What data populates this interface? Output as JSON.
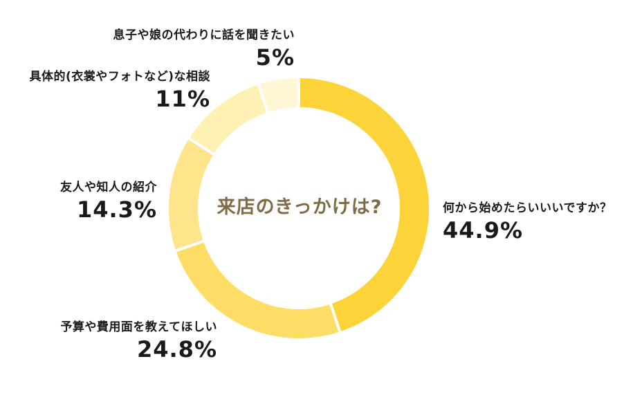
{
  "chart_data": {
    "type": "pie",
    "variant": "donut",
    "title": "来店のきっかけは?",
    "categories": [
      "何から始めたらいいいですか？",
      "予算や費用面を教えてほしい",
      "友人や知人の紹介",
      "具体的(衣裳やフォトなど)な相談",
      "息子や娘の代わりに話を聞きたい"
    ],
    "values": [
      44.9,
      24.8,
      14.3,
      11,
      5
    ],
    "value_labels": [
      "44.9%",
      "24.8%",
      "14.3%",
      "11%",
      "5%"
    ],
    "colors": [
      "#fdd33a",
      "#fedd66",
      "#fee48a",
      "#fff0b3",
      "#fff6d6"
    ],
    "legend": "none"
  }
}
